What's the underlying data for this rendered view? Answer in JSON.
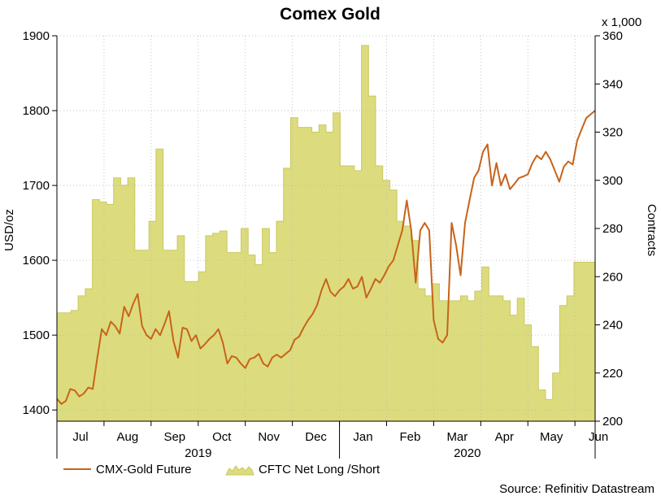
{
  "chart_data": {
    "type": "line+area",
    "title": "Comex Gold",
    "ylabel_left": "USD/oz",
    "ylabel_right": "Contracts",
    "right_multiplier": "x 1,000",
    "ylim_left": [
      1385,
      1900
    ],
    "ylim_right": [
      200,
      360
    ],
    "yticks_left": [
      1400,
      1500,
      1600,
      1700,
      1800,
      1900
    ],
    "yticks_right": [
      200,
      220,
      240,
      260,
      280,
      300,
      320,
      340,
      360
    ],
    "months": [
      "Jul",
      "Aug",
      "Sep",
      "Oct",
      "Nov",
      "Dec",
      "Jan",
      "Feb",
      "Mar",
      "Apr",
      "May",
      "Jun"
    ],
    "years": [
      "2019",
      "2020"
    ],
    "x_note": "x = trading-day index (0..240), approximately 21 trading days per month starting July 2019",
    "series": [
      {
        "name": "CMX-Gold Future",
        "axis": "left",
        "color": "#c8631a",
        "x": [
          0,
          2,
          4,
          6,
          8,
          10,
          12,
          14,
          16,
          18,
          20,
          22,
          24,
          26,
          28,
          30,
          32,
          34,
          36,
          38,
          40,
          42,
          44,
          46,
          48,
          50,
          52,
          54,
          56,
          58,
          60,
          62,
          64,
          66,
          68,
          70,
          72,
          74,
          76,
          78,
          80,
          82,
          84,
          86,
          88,
          90,
          92,
          94,
          96,
          98,
          100,
          102,
          104,
          106,
          108,
          110,
          112,
          114,
          116,
          118,
          120,
          122,
          124,
          126,
          128,
          130,
          132,
          134,
          136,
          138,
          140,
          142,
          144,
          146,
          148,
          150,
          152,
          154,
          156,
          158,
          160,
          162,
          164,
          166,
          168,
          170,
          172,
          174,
          176,
          178,
          180,
          182,
          184,
          186,
          188,
          190,
          192,
          194,
          196,
          198,
          200,
          202,
          204,
          206,
          208,
          210,
          212,
          214,
          216,
          218,
          220,
          222,
          224,
          226,
          228,
          230,
          232,
          234,
          236,
          238,
          240
        ],
        "values": [
          1415,
          1408,
          1412,
          1428,
          1426,
          1418,
          1422,
          1430,
          1428,
          1470,
          1508,
          1500,
          1518,
          1512,
          1502,
          1538,
          1525,
          1542,
          1555,
          1512,
          1500,
          1495,
          1508,
          1500,
          1515,
          1532,
          1492,
          1470,
          1510,
          1508,
          1492,
          1500,
          1482,
          1488,
          1495,
          1500,
          1508,
          1490,
          1462,
          1472,
          1470,
          1462,
          1456,
          1468,
          1470,
          1475,
          1462,
          1458,
          1470,
          1474,
          1470,
          1475,
          1480,
          1494,
          1498,
          1510,
          1520,
          1528,
          1540,
          1560,
          1575,
          1558,
          1552,
          1560,
          1565,
          1575,
          1562,
          1565,
          1578,
          1550,
          1562,
          1575,
          1570,
          1580,
          1592,
          1600,
          1620,
          1640,
          1680,
          1640,
          1570,
          1640,
          1650,
          1640,
          1520,
          1495,
          1490,
          1500,
          1650,
          1620,
          1580,
          1650,
          1680,
          1710,
          1720,
          1745,
          1755,
          1700,
          1730,
          1700,
          1715,
          1695,
          1702,
          1710,
          1712,
          1715,
          1730,
          1740,
          1735,
          1745,
          1735,
          1720,
          1705,
          1725,
          1732,
          1728,
          1760,
          1775,
          1790,
          1795,
          1800
        ]
      },
      {
        "name": "CFTC Net Long /Short",
        "axis": "right",
        "color": "#dcdc7e",
        "stroke": "#c9c960",
        "weekly_values": [
          245,
          245,
          246,
          252,
          255,
          292,
          291,
          290,
          301,
          298,
          301,
          271,
          271,
          283,
          313,
          271,
          271,
          277,
          258,
          258,
          262,
          277,
          278,
          279,
          270,
          270,
          280,
          269,
          265,
          280,
          270,
          283,
          305,
          326,
          322,
          322,
          320,
          323,
          320,
          328,
          306,
          306,
          304,
          356,
          335,
          306,
          300,
          296,
          283,
          281,
          275,
          255,
          252,
          257,
          250,
          250,
          250,
          252,
          250,
          254,
          264,
          252,
          252,
          250,
          244,
          251,
          240,
          231,
          213,
          209,
          220,
          248,
          252,
          266,
          266,
          266
        ]
      }
    ]
  },
  "legend": {
    "gold_label": "CMX-Gold Future",
    "cftc_label": "CFTC Net Long /Short"
  },
  "source": "Source: Refinitiv Datastream"
}
